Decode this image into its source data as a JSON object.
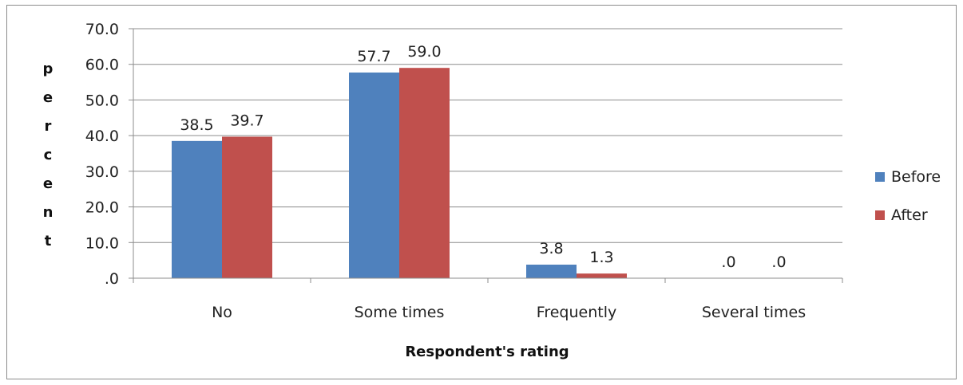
{
  "chart_data": {
    "type": "bar",
    "title": "",
    "categories": [
      "No",
      "Some times",
      "Frequently",
      "Several times"
    ],
    "series": [
      {
        "name": "Before",
        "values": [
          38.5,
          57.7,
          3.8,
          0.0
        ],
        "labels": [
          "38.5",
          "57.7",
          "3.8",
          ".0"
        ],
        "color": "#4f81bd"
      },
      {
        "name": "After",
        "values": [
          39.7,
          59.0,
          1.3,
          0.0
        ],
        "labels": [
          "39.7",
          "59.0",
          "1.3",
          ".0"
        ],
        "color": "#c0504d"
      }
    ],
    "xlabel": "Respondent's rating",
    "ylabel": "percent",
    "ylim": [
      0,
      70
    ],
    "yticks": [
      0,
      10,
      20,
      30,
      40,
      50,
      60,
      70
    ],
    "ytick_labels": [
      ".0",
      "10.0",
      "20.0",
      "30.0",
      "40.0",
      "50.0",
      "60.0",
      "70.0"
    ],
    "grid": true,
    "legend_position": "right"
  }
}
